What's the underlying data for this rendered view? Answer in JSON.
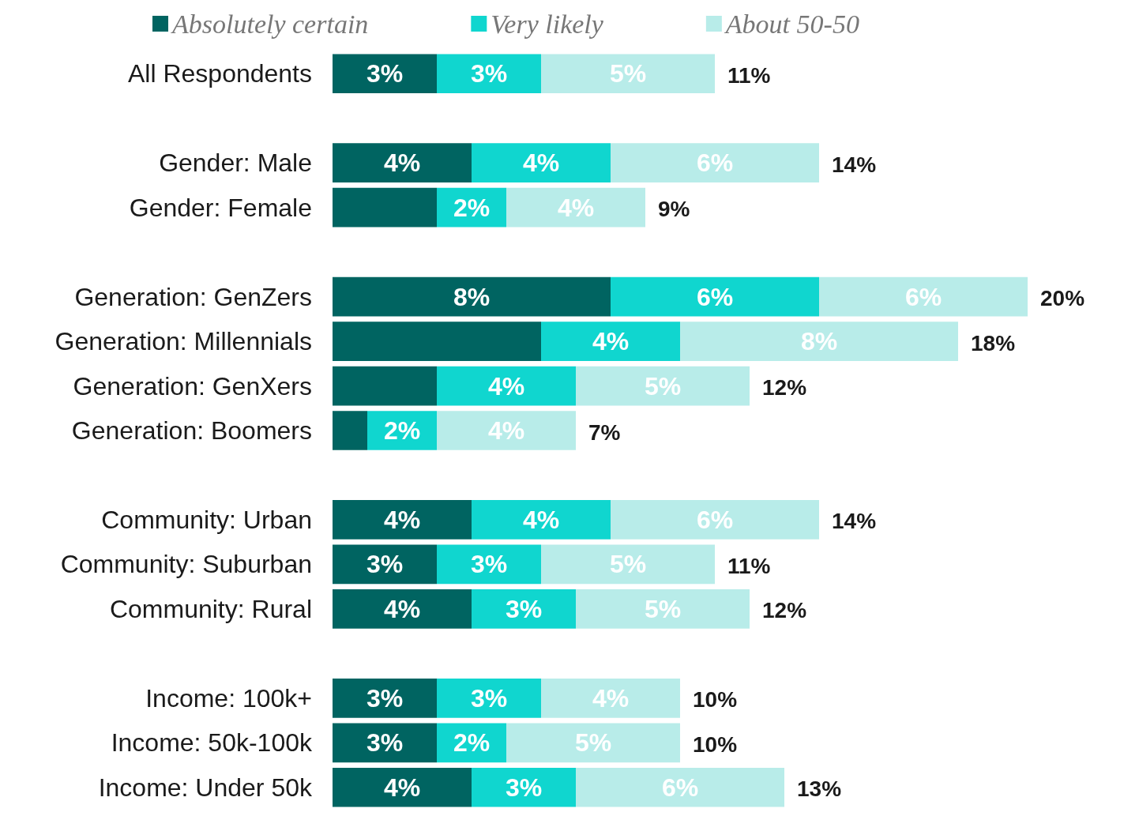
{
  "chart_data": {
    "type": "bar",
    "orientation": "horizontal",
    "stacked": true,
    "legend": "top",
    "categories": [
      "All Respondents",
      null,
      "Gender: Male",
      "Gender: Female",
      null,
      "Generation: GenZers",
      "Generation: Millennials",
      "Generation: GenXers",
      "Generation: Boomers",
      null,
      "Community: Urban",
      "Community: Suburban",
      "Community: Rural",
      null,
      "Income: 100k+",
      "Income: 50k-100k",
      "Income: Under 50k"
    ],
    "series": [
      {
        "name": "Absolutely certain",
        "color": "#006461",
        "values": [
          3,
          null,
          4,
          3,
          null,
          8,
          6,
          3,
          1,
          null,
          4,
          3,
          4,
          null,
          3,
          3,
          4
        ],
        "value_labels": [
          "3%",
          null,
          "4%",
          null,
          null,
          "8%",
          null,
          null,
          null,
          null,
          "4%",
          "3%",
          "4%",
          null,
          "3%",
          "3%",
          "4%"
        ]
      },
      {
        "name": "Very likely",
        "color": "#10d6cf",
        "values": [
          3,
          null,
          4,
          2,
          null,
          6,
          4,
          4,
          2,
          null,
          4,
          3,
          3,
          null,
          3,
          2,
          3
        ],
        "value_labels": [
          "3%",
          null,
          "4%",
          "2%",
          null,
          "6%",
          "4%",
          "4%",
          "2%",
          null,
          "4%",
          "3%",
          "3%",
          null,
          "3%",
          "2%",
          "3%"
        ]
      },
      {
        "name": "About 50-50",
        "color": "#b8ece9",
        "values": [
          5,
          null,
          6,
          4,
          null,
          6,
          8,
          5,
          4,
          null,
          6,
          5,
          5,
          null,
          4,
          5,
          6
        ],
        "value_labels": [
          "5%",
          null,
          "6%",
          "4%",
          null,
          "6%",
          "8%",
          "5%",
          "4%",
          null,
          "6%",
          "5%",
          "5%",
          null,
          "4%",
          "5%",
          "6%"
        ]
      }
    ],
    "totals": [
      "11%",
      null,
      "14%",
      "9%",
      null,
      "20%",
      "18%",
      "12%",
      "7%",
      null,
      "14%",
      "11%",
      "12%",
      null,
      "10%",
      "10%",
      "13%"
    ]
  }
}
